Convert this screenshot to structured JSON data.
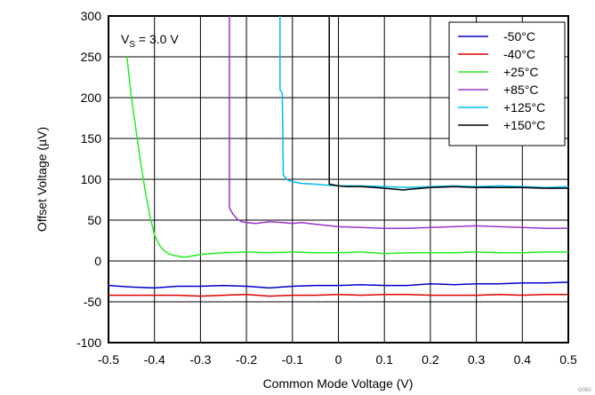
{
  "chart_data": {
    "type": "line",
    "xlabel": "Common Mode Voltage (V)",
    "ylabel": "Offset Voltage (µV)",
    "xlim": [
      -0.5,
      0.5
    ],
    "ylim": [
      -100,
      300
    ],
    "x_ticks": [
      "-0.5",
      "-0.4",
      "-0.3",
      "-0.2",
      "-0.1",
      "0",
      "0.1",
      "0.2",
      "0.3",
      "0.4",
      "0.5"
    ],
    "y_ticks": [
      "300",
      "250",
      "200",
      "150",
      "100",
      "50",
      "0",
      "-50",
      "-100"
    ],
    "grid": true,
    "legend_position": "top-right",
    "annotation": {
      "prefix": "V",
      "subscript": "S",
      "suffix": " = 3.0 V"
    },
    "footer_code": "G050",
    "series": [
      {
        "name": "-50°C",
        "color": "#0000cc",
        "points": [
          [
            -0.5,
            -30
          ],
          [
            -0.45,
            -32
          ],
          [
            -0.4,
            -33
          ],
          [
            -0.35,
            -31
          ],
          [
            -0.3,
            -31
          ],
          [
            -0.25,
            -30
          ],
          [
            -0.2,
            -31
          ],
          [
            -0.15,
            -33
          ],
          [
            -0.1,
            -31
          ],
          [
            -0.05,
            -30
          ],
          [
            0,
            -30
          ],
          [
            0.05,
            -29
          ],
          [
            0.1,
            -30
          ],
          [
            0.15,
            -30
          ],
          [
            0.2,
            -28
          ],
          [
            0.25,
            -29
          ],
          [
            0.3,
            -28
          ],
          [
            0.35,
            -28
          ],
          [
            0.4,
            -27
          ],
          [
            0.45,
            -27
          ],
          [
            0.5,
            -26
          ]
        ]
      },
      {
        "name": "-40°C",
        "color": "#dd0000",
        "points": [
          [
            -0.5,
            -42
          ],
          [
            -0.45,
            -42
          ],
          [
            -0.4,
            -42
          ],
          [
            -0.35,
            -42
          ],
          [
            -0.3,
            -43
          ],
          [
            -0.25,
            -42
          ],
          [
            -0.2,
            -41
          ],
          [
            -0.15,
            -43
          ],
          [
            -0.1,
            -42
          ],
          [
            -0.05,
            -42
          ],
          [
            0,
            -41
          ],
          [
            0.05,
            -42
          ],
          [
            0.1,
            -41
          ],
          [
            0.15,
            -41
          ],
          [
            0.2,
            -42
          ],
          [
            0.25,
            -42
          ],
          [
            0.3,
            -42
          ],
          [
            0.35,
            -41
          ],
          [
            0.4,
            -42
          ],
          [
            0.45,
            -41
          ],
          [
            0.5,
            -41
          ]
        ]
      },
      {
        "name": "+25°C",
        "color": "#22ee22",
        "points": [
          [
            -0.46,
            250
          ],
          [
            -0.45,
            200
          ],
          [
            -0.44,
            160
          ],
          [
            -0.43,
            120
          ],
          [
            -0.42,
            85
          ],
          [
            -0.41,
            55
          ],
          [
            -0.4,
            32
          ],
          [
            -0.39,
            20
          ],
          [
            -0.38,
            13
          ],
          [
            -0.37,
            9
          ],
          [
            -0.36,
            7
          ],
          [
            -0.35,
            6
          ],
          [
            -0.34,
            5
          ],
          [
            -0.33,
            5
          ],
          [
            -0.32,
            6
          ],
          [
            -0.3,
            8
          ],
          [
            -0.25,
            10
          ],
          [
            -0.2,
            11
          ],
          [
            -0.15,
            10
          ],
          [
            -0.1,
            11
          ],
          [
            -0.05,
            10
          ],
          [
            0,
            10
          ],
          [
            0.05,
            11
          ],
          [
            0.1,
            9
          ],
          [
            0.15,
            10
          ],
          [
            0.2,
            10
          ],
          [
            0.25,
            10
          ],
          [
            0.3,
            11
          ],
          [
            0.35,
            10
          ],
          [
            0.4,
            10
          ],
          [
            0.45,
            11
          ],
          [
            0.5,
            11
          ]
        ]
      },
      {
        "name": "+85°C",
        "color": "#9933cc",
        "points": [
          [
            -0.237,
            300
          ],
          [
            -0.237,
            65
          ],
          [
            -0.23,
            58
          ],
          [
            -0.22,
            51
          ],
          [
            -0.21,
            48
          ],
          [
            -0.2,
            47
          ],
          [
            -0.18,
            46
          ],
          [
            -0.15,
            48
          ],
          [
            -0.12,
            47
          ],
          [
            -0.1,
            46
          ],
          [
            -0.08,
            47
          ],
          [
            -0.05,
            45
          ],
          [
            0,
            42
          ],
          [
            0.05,
            41
          ],
          [
            0.1,
            40
          ],
          [
            0.15,
            40
          ],
          [
            0.2,
            41
          ],
          [
            0.25,
            42
          ],
          [
            0.3,
            43
          ],
          [
            0.35,
            42
          ],
          [
            0.4,
            41
          ],
          [
            0.45,
            40
          ],
          [
            0.5,
            40
          ]
        ]
      },
      {
        "name": "+125°C",
        "color": "#00bbee",
        "points": [
          [
            -0.127,
            300
          ],
          [
            -0.127,
            210
          ],
          [
            -0.122,
            205
          ],
          [
            -0.12,
            105
          ],
          [
            -0.11,
            99
          ],
          [
            -0.1,
            97
          ],
          [
            -0.08,
            95
          ],
          [
            -0.05,
            94
          ],
          [
            -0.03,
            93
          ],
          [
            0,
            92
          ],
          [
            0.05,
            92
          ],
          [
            0.1,
            91
          ],
          [
            0.15,
            90
          ],
          [
            0.2,
            91
          ],
          [
            0.25,
            92
          ],
          [
            0.3,
            91
          ],
          [
            0.35,
            92
          ],
          [
            0.4,
            91
          ],
          [
            0.45,
            90
          ],
          [
            0.5,
            91
          ]
        ]
      },
      {
        "name": "+150°C",
        "color": "#000000",
        "points": [
          [
            -0.02,
            300
          ],
          [
            -0.02,
            94
          ],
          [
            -0.01,
            93
          ],
          [
            0,
            92
          ],
          [
            0.02,
            91
          ],
          [
            0.05,
            91
          ],
          [
            0.08,
            90
          ],
          [
            0.1,
            89
          ],
          [
            0.12,
            88
          ],
          [
            0.14,
            87
          ],
          [
            0.16,
            88
          ],
          [
            0.18,
            89
          ],
          [
            0.2,
            90
          ],
          [
            0.25,
            91
          ],
          [
            0.3,
            90
          ],
          [
            0.35,
            90
          ],
          [
            0.4,
            90
          ],
          [
            0.45,
            89
          ],
          [
            0.5,
            89
          ]
        ]
      }
    ]
  }
}
